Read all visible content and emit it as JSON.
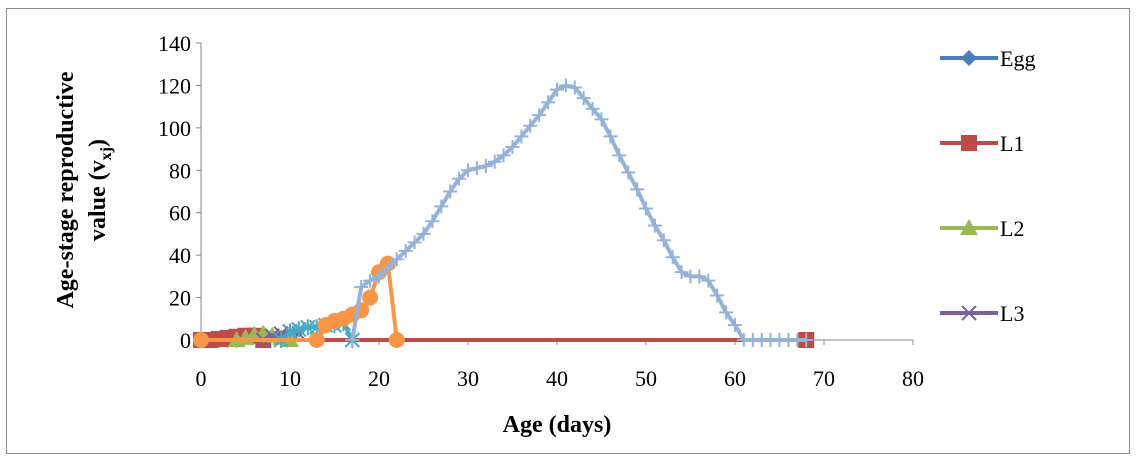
{
  "chart_data": {
    "type": "line",
    "xlabel": "Age (days)",
    "ylabel_line1": "Age-stage reproductive",
    "ylabel_line2": "value  (v",
    "ylabel_sub": "xj",
    "ylabel_close": ")",
    "xlim": [
      0,
      80
    ],
    "ylim": [
      0,
      140
    ],
    "xticks": [
      0,
      10,
      20,
      30,
      40,
      50,
      60,
      70,
      80
    ],
    "yticks": [
      0,
      20,
      40,
      60,
      80,
      100,
      120,
      140
    ],
    "grid": false,
    "legend_position": "right",
    "series": [
      {
        "name": "Egg",
        "color": "#4a7ebb",
        "marker": "diamond",
        "points": [
          [
            0,
            0
          ],
          [
            1,
            0
          ],
          [
            2,
            0
          ],
          [
            3,
            0
          ],
          [
            4,
            0
          ],
          [
            68,
            0
          ]
        ]
      },
      {
        "name": "L1",
        "color": "#be4b48",
        "marker": "square",
        "points": [
          [
            0,
            0
          ],
          [
            1,
            0
          ],
          [
            2,
            0.5
          ],
          [
            3,
            1
          ],
          [
            4,
            1.5
          ],
          [
            5,
            2
          ],
          [
            6,
            2
          ],
          [
            7,
            0
          ],
          [
            68,
            0
          ]
        ]
      },
      {
        "name": "L2",
        "color": "#98b954",
        "marker": "triangle",
        "points": [
          [
            4,
            0
          ],
          [
            5,
            1
          ],
          [
            6,
            2.5
          ],
          [
            7,
            3
          ],
          [
            8,
            2
          ],
          [
            9,
            1
          ],
          [
            10,
            0
          ]
        ]
      },
      {
        "name": "L3",
        "color": "#7d60a0",
        "marker": "x",
        "points": [
          [
            7,
            0
          ],
          [
            8,
            2
          ],
          [
            9,
            3
          ],
          [
            10,
            4
          ],
          [
            11,
            3
          ]
        ]
      },
      {
        "name": "",
        "color": "#46aac5",
        "marker": "star",
        "points": [
          [
            9,
            0
          ],
          [
            10,
            4
          ],
          [
            11,
            5
          ],
          [
            12,
            6
          ],
          [
            13,
            6
          ],
          [
            14,
            7
          ],
          [
            15,
            7
          ],
          [
            16,
            8
          ],
          [
            17,
            0
          ]
        ]
      },
      {
        "name": "",
        "color": "#f79646",
        "marker": "circle",
        "points": [
          [
            0,
            0
          ],
          [
            13,
            0
          ],
          [
            14,
            7
          ],
          [
            15,
            9
          ],
          [
            16,
            10
          ],
          [
            17,
            12
          ],
          [
            18,
            14
          ],
          [
            19,
            20
          ],
          [
            20,
            32
          ],
          [
            21,
            36
          ],
          [
            22,
            0
          ]
        ]
      },
      {
        "name": "",
        "color": "#95b3d7",
        "marker": "plus",
        "points": [
          [
            17,
            0
          ],
          [
            18,
            25
          ],
          [
            19,
            28
          ],
          [
            20,
            30
          ],
          [
            21,
            34
          ],
          [
            22,
            38
          ],
          [
            23,
            42
          ],
          [
            24,
            46
          ],
          [
            25,
            50
          ],
          [
            26,
            56
          ],
          [
            27,
            63
          ],
          [
            28,
            70
          ],
          [
            29,
            76
          ],
          [
            30,
            80
          ],
          [
            31,
            81
          ],
          [
            32,
            82
          ],
          [
            33,
            84
          ],
          [
            34,
            87
          ],
          [
            35,
            91
          ],
          [
            36,
            96
          ],
          [
            37,
            101
          ],
          [
            38,
            106
          ],
          [
            39,
            112
          ],
          [
            40,
            118
          ],
          [
            41,
            120
          ],
          [
            42,
            119
          ],
          [
            43,
            114
          ],
          [
            44,
            109
          ],
          [
            45,
            104
          ],
          [
            46,
            96
          ],
          [
            47,
            87
          ],
          [
            48,
            79
          ],
          [
            49,
            71
          ],
          [
            50,
            62
          ],
          [
            51,
            54
          ],
          [
            52,
            47
          ],
          [
            53,
            39
          ],
          [
            54,
            32
          ],
          [
            55,
            30
          ],
          [
            56,
            30
          ],
          [
            57,
            28
          ],
          [
            58,
            21
          ],
          [
            59,
            13
          ],
          [
            60,
            7
          ],
          [
            61,
            0
          ],
          [
            62,
            0
          ],
          [
            63,
            0
          ],
          [
            64,
            0
          ],
          [
            65,
            0
          ],
          [
            66,
            0
          ],
          [
            67,
            0
          ],
          [
            68,
            0
          ]
        ]
      }
    ]
  }
}
